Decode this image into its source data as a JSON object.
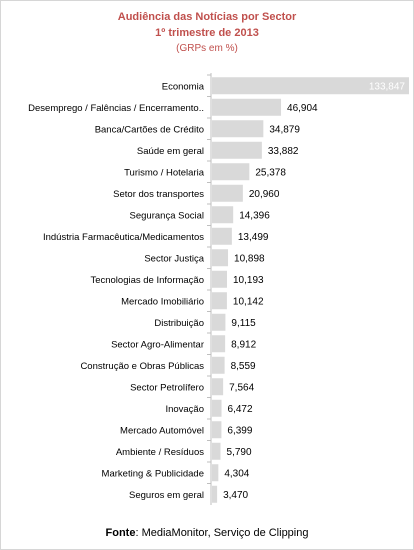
{
  "chart_data": {
    "type": "bar",
    "orientation": "horizontal",
    "title": "Audiência das Notícias por Sector",
    "subtitle": "1º trimestre de 2013",
    "unit_note": "(GRPs em %)",
    "categories": [
      "Economia",
      "Desemprego / Falências / Encerramento..",
      "Banca/Cartões de Crédito",
      "Saúde em geral",
      "Turismo / Hotelaria",
      "Setor dos transportes",
      "Segurança Social",
      "Indústria Farmacêutica/Medicamentos",
      "Sector Justiça",
      "Tecnologias de Informação",
      "Mercado Imobiliário",
      "Distribuição",
      "Sector Agro-Alimentar",
      "Construção e Obras Públicas",
      "Sector Petrolífero",
      "Inovação",
      "Mercado Automóvel",
      "Ambiente / Resíduos",
      "Marketing & Publicidade",
      "Seguros em geral"
    ],
    "values": [
      133.847,
      46.904,
      34.879,
      33.882,
      25.378,
      20.96,
      14.396,
      13.499,
      10.898,
      10.193,
      10.142,
      9.115,
      8.912,
      8.559,
      7.564,
      6.472,
      6.399,
      5.79,
      4.304,
      3.47
    ],
    "value_labels": [
      "133,847",
      "46,904",
      "34,879",
      "33,882",
      "25,378",
      "20,960",
      "14,396",
      "13,499",
      "10,898",
      "10,193",
      "10,142",
      "9,115",
      "8,912",
      "8,559",
      "7,564",
      "6,472",
      "6,399",
      "5,790",
      "4,304",
      "3,470"
    ],
    "xlim": [
      0,
      133.847
    ],
    "grid": false,
    "legend": "none",
    "bar_color": "#d9d9d9"
  },
  "footer": {
    "source_label": "Fonte",
    "source_text": ": MediaMonitor, Serviço de Clipping"
  },
  "colors": {
    "title": "#c0504d",
    "bar": "#d9d9d9",
    "axis": "#bfbfbf"
  }
}
